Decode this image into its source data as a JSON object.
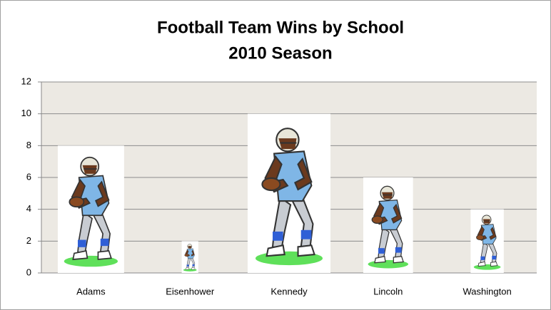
{
  "chart_data": {
    "type": "pictograph",
    "title": "Football Team Wins by School",
    "subtitle": "2010 Season",
    "categories": [
      "Adams",
      "Eisenhower",
      "Kennedy",
      "Lincoln",
      "Washington"
    ],
    "values": [
      8,
      2,
      10,
      6,
      4
    ],
    "ylim": [
      0,
      12
    ],
    "yticks": [
      0,
      2,
      4,
      6,
      8,
      10,
      12
    ],
    "grid": true,
    "plot_background": "#ece9e3",
    "grid_color": "#8c8c8c"
  }
}
